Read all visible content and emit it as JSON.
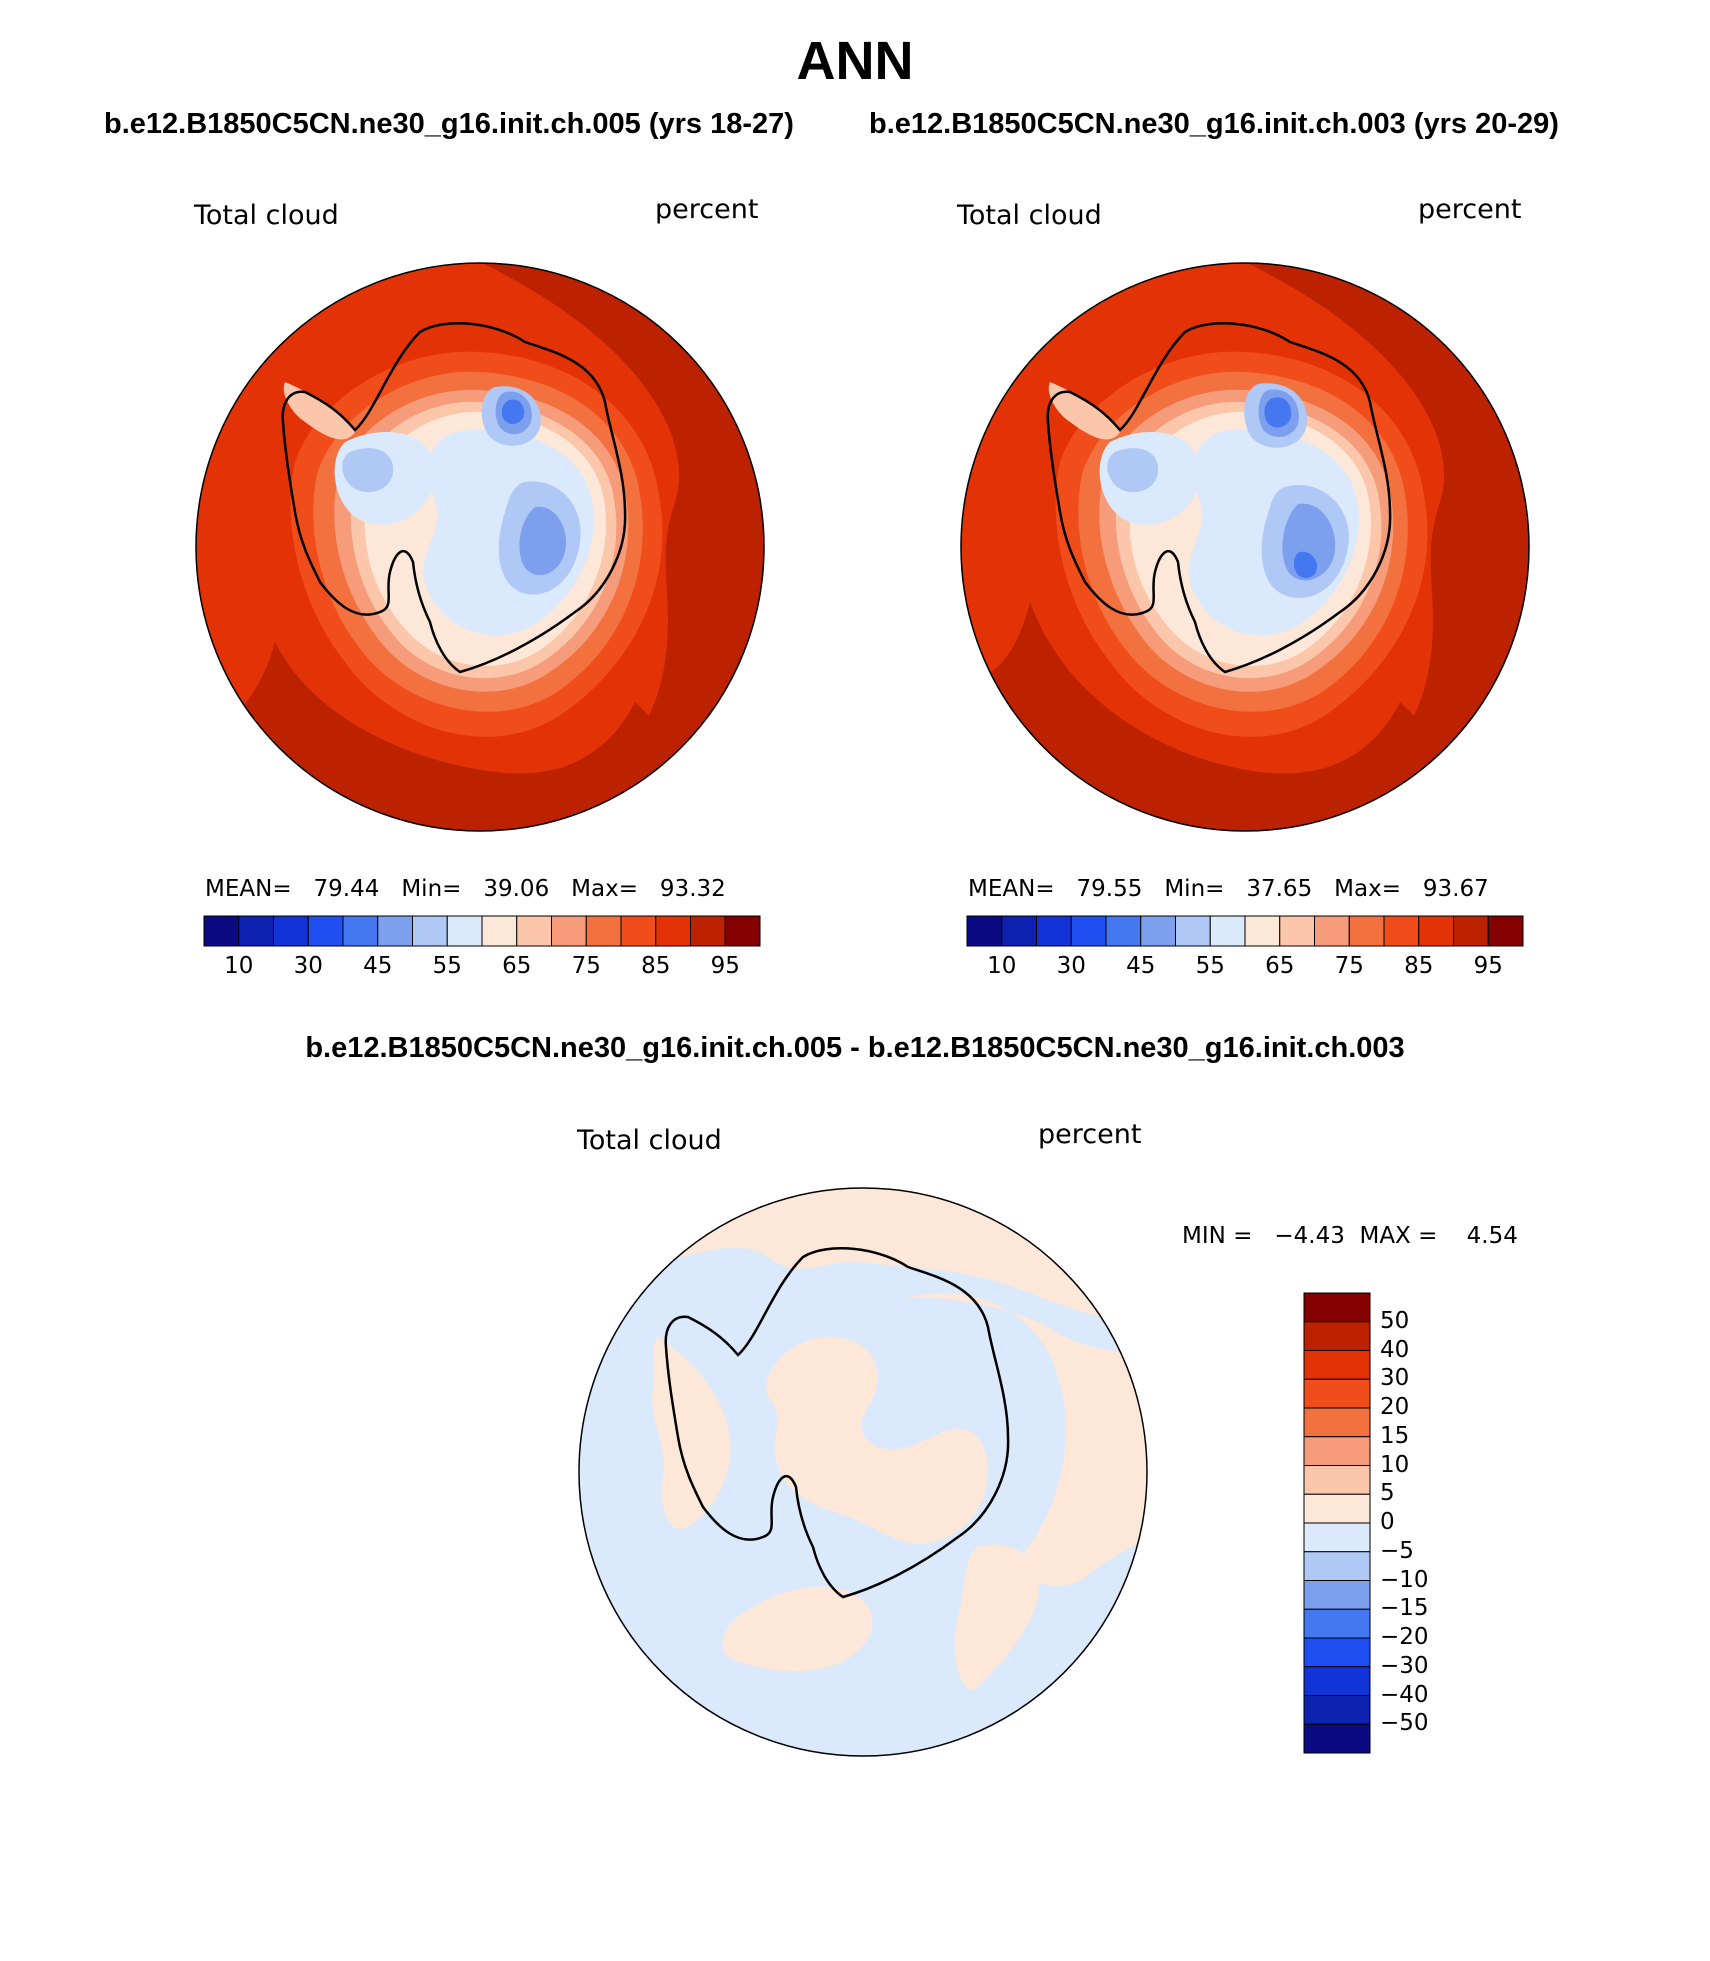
{
  "title": "ANN",
  "top_subtitle": {
    "left": "b.e12.B1850C5CN.ne30_g16.init.ch.005 (yrs 18-27)",
    "right": "b.e12.B1850C5CN.ne30_g16.init.ch.003 (yrs 20-29)"
  },
  "diff_title": "b.e12.B1850C5CN.ne30_g16.init.ch.005 - b.e12.B1850C5CN.ne30_g16.init.ch.003",
  "panels": [
    {
      "id": "case1",
      "var_label": "Total cloud",
      "units": "percent",
      "stats": {
        "mean_label": "MEAN=",
        "mean": "79.44",
        "min_label": "Min=",
        "min": "39.06",
        "max_label": "Max=",
        "max": "93.32"
      }
    },
    {
      "id": "case2",
      "var_label": "Total cloud",
      "units": "percent",
      "stats": {
        "mean_label": "MEAN=",
        "mean": "79.55",
        "min_label": "Min=",
        "min": "37.65",
        "max_label": "Max=",
        "max": "93.67"
      }
    }
  ],
  "diff_panel": {
    "var_label": "Total cloud",
    "units": "percent",
    "stats": {
      "min_label": "MIN =",
      "min": "−4.43",
      "max_label": "MAX =",
      "max": "4.54"
    }
  },
  "colorbar_main": {
    "colors": [
      "#0a0a82",
      "#0d22b0",
      "#1233d7",
      "#1f4ff0",
      "#4477f0",
      "#7da0ee",
      "#b0c8f5",
      "#dae9fb",
      "#fde7d8",
      "#fbc6aa",
      "#f69c7a",
      "#f2713f",
      "#f04d1a",
      "#e23206",
      "#bc2100",
      "#850000"
    ],
    "tick_labels": [
      "10",
      "30",
      "45",
      "55",
      "65",
      "75",
      "85",
      "95"
    ]
  },
  "colorbar_diff": {
    "colors": [
      "#850000",
      "#bc2100",
      "#e23206",
      "#f04d1a",
      "#f2713f",
      "#f69c7a",
      "#fbc6aa",
      "#fde7d8",
      "#dae9fb",
      "#b0c8f5",
      "#7da0ee",
      "#4477f0",
      "#1f4ff0",
      "#1233d7",
      "#0d22b0",
      "#0a0a82"
    ],
    "tick_labels": [
      "50",
      "40",
      "30",
      "20",
      "15",
      "10",
      "5",
      "0",
      "−5",
      "−10",
      "−15",
      "−20",
      "−30",
      "−40",
      "−50"
    ]
  },
  "map_colors": {
    "ocean_outer": "#e23206",
    "ocean_dark": "#bc2100",
    "ring_orange": "#f04d1a",
    "ring_mid": "#f2713f",
    "ring_salmon": "#f69c7a",
    "ring_peach": "#fbc6aa",
    "interior_pale": "#fde7d8",
    "interior_white": "#ffffff",
    "interior_lightblue": "#dae9fb",
    "interior_blue1": "#b0c8f5",
    "interior_blue2": "#7da0ee",
    "interior_blue3": "#4477f0",
    "diff_pos": "#fde7d8",
    "diff_neg": "#dae9fb"
  }
}
